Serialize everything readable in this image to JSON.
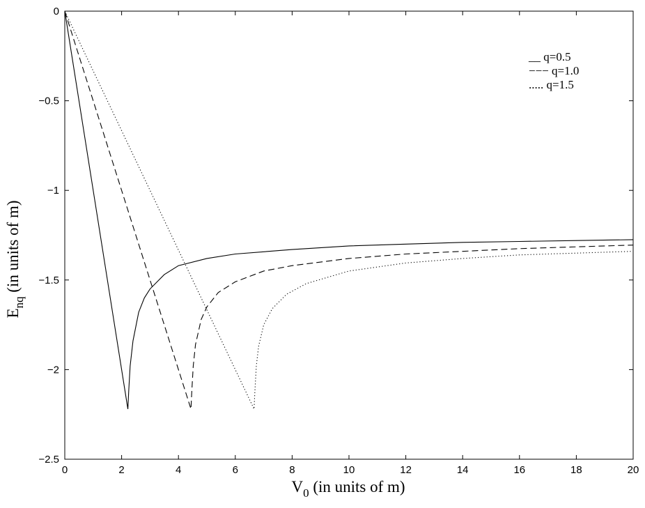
{
  "chart_data": {
    "type": "line",
    "xlabel": {
      "main": "V",
      "sub": "0",
      "rest": " (in units of m)"
    },
    "ylabel": {
      "main": "E",
      "sub": "nq",
      "rest": " (in units of m)"
    },
    "xlim": [
      0,
      20
    ],
    "ylim": [
      -2.5,
      0
    ],
    "xticks": [
      0,
      2,
      4,
      6,
      8,
      10,
      12,
      14,
      16,
      18,
      20
    ],
    "xtick_labels": [
      "0",
      "2",
      "4",
      "6",
      "8",
      "10",
      "12",
      "14",
      "16",
      "18",
      "20"
    ],
    "yticks": [
      0,
      -0.5,
      -1,
      -1.5,
      -2,
      -2.5
    ],
    "ytick_labels": [
      "0",
      "−0.5",
      "−1",
      "−1.5",
      "−2",
      "−2.5"
    ],
    "grid": false,
    "legend_position": "top-right",
    "series": [
      {
        "name": "q=0.5",
        "legend_label": "__ q=0.5",
        "style": "solid",
        "x": [
          0,
          2.22,
          2.25,
          2.3,
          2.4,
          2.6,
          2.8,
          3.0,
          3.5,
          4.0,
          5.0,
          6.0,
          8.0,
          10.0,
          12.0,
          14.0,
          16.0,
          18.0,
          20.0
        ],
        "y": [
          0,
          -2.22,
          -2.12,
          -1.98,
          -1.84,
          -1.68,
          -1.6,
          -1.55,
          -1.47,
          -1.42,
          -1.38,
          -1.355,
          -1.33,
          -1.31,
          -1.3,
          -1.29,
          -1.285,
          -1.28,
          -1.275
        ]
      },
      {
        "name": "q=1.0",
        "legend_label": "−−− q=1.0",
        "style": "dashed",
        "x": [
          0,
          4.44,
          4.47,
          4.52,
          4.6,
          4.8,
          5.0,
          5.4,
          6.0,
          7.0,
          8.0,
          10.0,
          12.0,
          14.0,
          16.0,
          18.0,
          20.0
        ],
        "y": [
          0,
          -2.22,
          -2.12,
          -1.98,
          -1.86,
          -1.72,
          -1.65,
          -1.57,
          -1.51,
          -1.45,
          -1.42,
          -1.38,
          -1.355,
          -1.34,
          -1.325,
          -1.315,
          -1.305
        ]
      },
      {
        "name": "q=1.5",
        "legend_label": "..... q=1.5",
        "style": "dotted",
        "x": [
          0,
          6.66,
          6.69,
          6.74,
          6.82,
          7.0,
          7.3,
          7.8,
          8.5,
          10.0,
          12.0,
          14.0,
          16.0,
          18.0,
          20.0
        ],
        "y": [
          0,
          -2.22,
          -2.12,
          -1.98,
          -1.87,
          -1.75,
          -1.66,
          -1.58,
          -1.52,
          -1.45,
          -1.405,
          -1.38,
          -1.36,
          -1.35,
          -1.34
        ]
      }
    ]
  }
}
